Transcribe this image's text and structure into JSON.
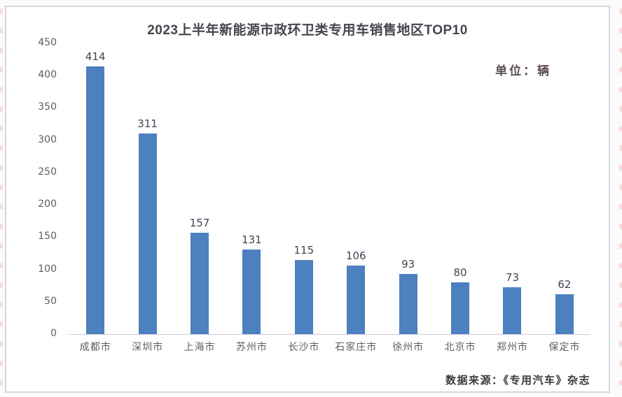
{
  "header": {
    "unit_label": "单位：辆"
  },
  "footer": {
    "source": "数据来源：《专用汽车》杂志"
  },
  "decor": {
    "panel_border_color": "#d6d4df",
    "edge_tick_color": "#f5dcdc",
    "edge_tick_count": 20,
    "edge_tick_spacing_px": 28
  },
  "chart_data": {
    "type": "bar",
    "title": "2023上半年新能源市政环卫类专用车销售地区TOP10",
    "unit_label": "单位：辆",
    "categories": [
      "成都市",
      "深圳市",
      "上海市",
      "苏州市",
      "长沙市",
      "石家庄市",
      "徐州市",
      "北京市",
      "郑州市",
      "保定市"
    ],
    "values": [
      414,
      311,
      157,
      131,
      115,
      106,
      93,
      80,
      73,
      62
    ],
    "xlabel": "",
    "ylabel": "",
    "ylim": [
      0,
      450
    ],
    "ytick_step": 50,
    "bar_color": "#4c80bf",
    "grid": false,
    "legend": false,
    "value_labels": true,
    "axis_line_color": "#cfcdd8",
    "label_color": "#5c5c63",
    "value_label_color": "#3e4553"
  }
}
